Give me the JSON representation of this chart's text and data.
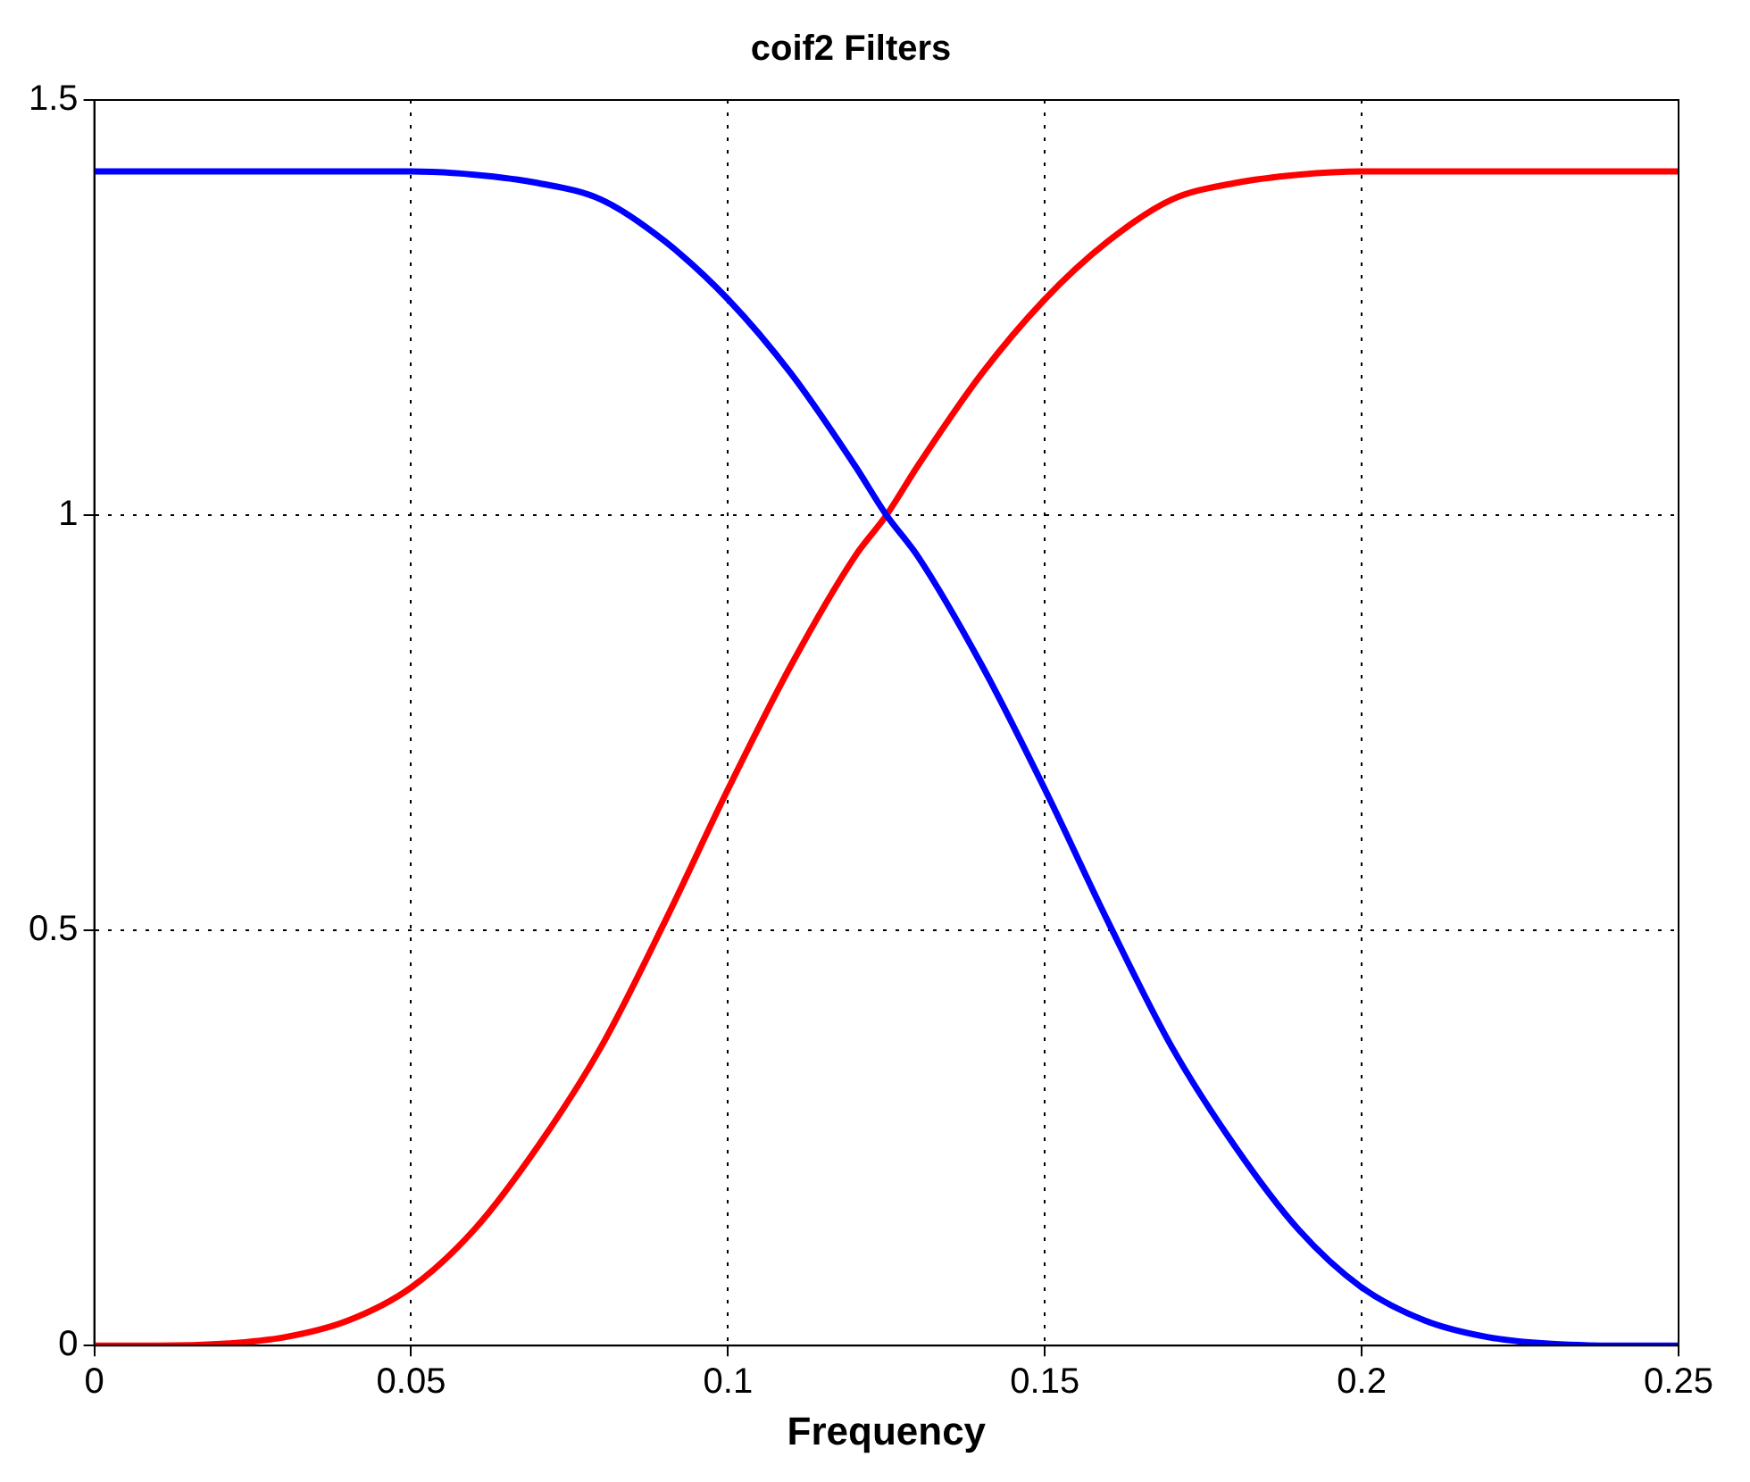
{
  "chart_data": {
    "type": "line",
    "title": "coif2 Filters",
    "xlabel": "Frequency",
    "x": [
      0,
      0.01,
      0.02,
      0.03,
      0.04,
      0.05,
      0.06,
      0.07,
      0.08,
      0.09,
      0.1,
      0.11,
      0.12,
      0.125,
      0.13,
      0.14,
      0.15,
      0.16,
      0.17,
      0.18,
      0.19,
      0.2,
      0.21,
      0.22,
      0.23,
      0.24,
      0.25
    ],
    "series": [
      {
        "color": "#0000ff",
        "values": [
          1.414,
          1.414,
          1.414,
          1.414,
          1.414,
          1.414,
          1.41,
          1.4,
          1.38,
          1.33,
          1.26,
          1.17,
          1.06,
          1.0,
          0.95,
          0.82,
          0.67,
          0.51,
          0.36,
          0.24,
          0.14,
          0.07,
          0.03,
          0.01,
          0.002,
          0,
          0
        ]
      },
      {
        "color": "#ff0000",
        "values": [
          0,
          0,
          0.002,
          0.01,
          0.03,
          0.07,
          0.14,
          0.24,
          0.36,
          0.51,
          0.67,
          0.82,
          0.95,
          1.0,
          1.06,
          1.17,
          1.26,
          1.33,
          1.38,
          1.4,
          1.41,
          1.414,
          1.414,
          1.414,
          1.414,
          1.414,
          1.414
        ]
      }
    ],
    "xlim": [
      0,
      0.25
    ],
    "xticks": [
      0,
      0.05,
      0.1,
      0.15,
      0.2,
      0.25
    ],
    "ylim": [
      0,
      1.5
    ],
    "yticks": [
      0,
      0.5,
      1,
      1.5
    ],
    "grid": true,
    "legend": false,
    "marker": "none",
    "line_style": "solid"
  }
}
